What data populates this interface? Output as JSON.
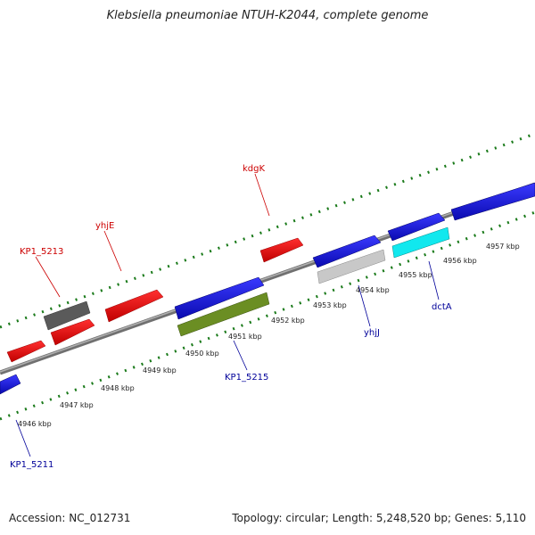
{
  "title": "Klebsiella pneumoniae NTUH-K2044, complete genome",
  "footer": {
    "accession": "Accession: NC_012731",
    "topology": "Topology: circular; Length: 5,248,520 bp; Genes: 5,110"
  },
  "colors": {
    "forward_gene": "#ee1111",
    "reverse_gene": "#1111dd",
    "dark_gene": "#5a5a5a",
    "olive_gene": "#6b8e23",
    "light_gene": "#c8c8c8",
    "cyan_gene": "#11e8ee",
    "backbone": "#888888",
    "ticks": "#1a7a1a",
    "forward_label": "#cc0000",
    "reverse_label": "#000099"
  },
  "position_labels": [
    "4946 kbp",
    "4947 kbp",
    "4948 kbp",
    "4949 kbp",
    "4950 kbp",
    "4951 kbp",
    "4952 kbp",
    "4953 kbp",
    "4954 kbp",
    "4955 kbp",
    "4956 kbp",
    "4957 kbp"
  ],
  "gene_labels": {
    "forward": [
      "KP1_5213",
      "yhjE",
      "kdgK"
    ],
    "reverse": [
      "KP1_5211",
      "KP1_5215",
      "yhjJ",
      "dctA"
    ]
  }
}
